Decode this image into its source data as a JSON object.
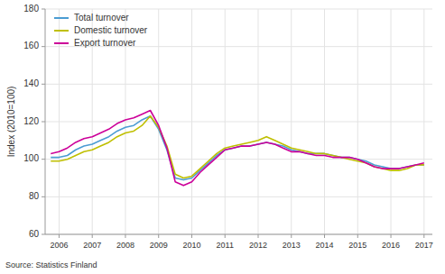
{
  "chart_data": {
    "type": "line",
    "y_label": "Index (2010=100)",
    "source": "Source: Statistics Finland",
    "x": [
      2005.75,
      2006.0,
      2006.25,
      2006.5,
      2006.75,
      2007.0,
      2007.25,
      2007.5,
      2007.75,
      2008.0,
      2008.25,
      2008.5,
      2008.75,
      2009.0,
      2009.25,
      2009.5,
      2009.75,
      2010.0,
      2010.25,
      2010.5,
      2010.75,
      2011.0,
      2011.25,
      2011.5,
      2011.75,
      2012.0,
      2012.25,
      2012.5,
      2012.75,
      2013.0,
      2013.25,
      2013.5,
      2013.75,
      2014.0,
      2014.25,
      2014.5,
      2014.75,
      2015.0,
      2015.25,
      2015.5,
      2015.75,
      2016.0,
      2016.25,
      2016.5,
      2016.75,
      2017.0
    ],
    "series": [
      {
        "name": "Total turnover",
        "color": "#4B9CD3",
        "values": [
          101,
          101,
          102,
          105,
          107,
          108,
          110,
          112,
          115,
          117,
          118,
          121,
          123,
          116,
          105,
          90,
          89,
          90,
          94,
          98,
          102,
          105,
          106,
          107,
          107,
          108,
          109,
          108,
          107,
          105,
          104,
          103,
          103,
          103,
          102,
          101,
          101,
          100,
          99,
          97,
          96,
          95,
          95,
          96,
          97,
          97
        ]
      },
      {
        "name": "Domestic turnover",
        "color": "#BFBF00",
        "values": [
          99,
          99,
          100,
          102,
          104,
          105,
          107,
          109,
          112,
          114,
          115,
          118,
          123,
          117,
          107,
          92,
          90,
          91,
          95,
          99,
          103,
          106,
          107,
          108,
          109,
          110,
          112,
          110,
          108,
          106,
          105,
          104,
          103,
          103,
          102,
          101,
          100,
          99,
          98,
          96,
          95,
          94,
          94,
          95,
          97,
          97
        ]
      },
      {
        "name": "Export turnover",
        "color": "#CC0099",
        "values": [
          103,
          104,
          106,
          109,
          111,
          112,
          114,
          116,
          119,
          121,
          122,
          124,
          126,
          118,
          106,
          88,
          86,
          88,
          93,
          97,
          101,
          105,
          106,
          107,
          107,
          108,
          109,
          108,
          106,
          104,
          104,
          103,
          102,
          102,
          101,
          101,
          101,
          100,
          98,
          96,
          95,
          95,
          95,
          96,
          97,
          98
        ]
      }
    ],
    "xlim": [
      2005.58,
      2017.25
    ],
    "xticks": [
      2006,
      2007,
      2008,
      2009,
      2010,
      2011,
      2012,
      2013,
      2014,
      2015,
      2016,
      2017
    ],
    "ylim": [
      60,
      180
    ],
    "yticks": [
      60,
      80,
      100,
      120,
      140,
      160,
      180
    ],
    "grid": true,
    "legend": "upper left"
  }
}
